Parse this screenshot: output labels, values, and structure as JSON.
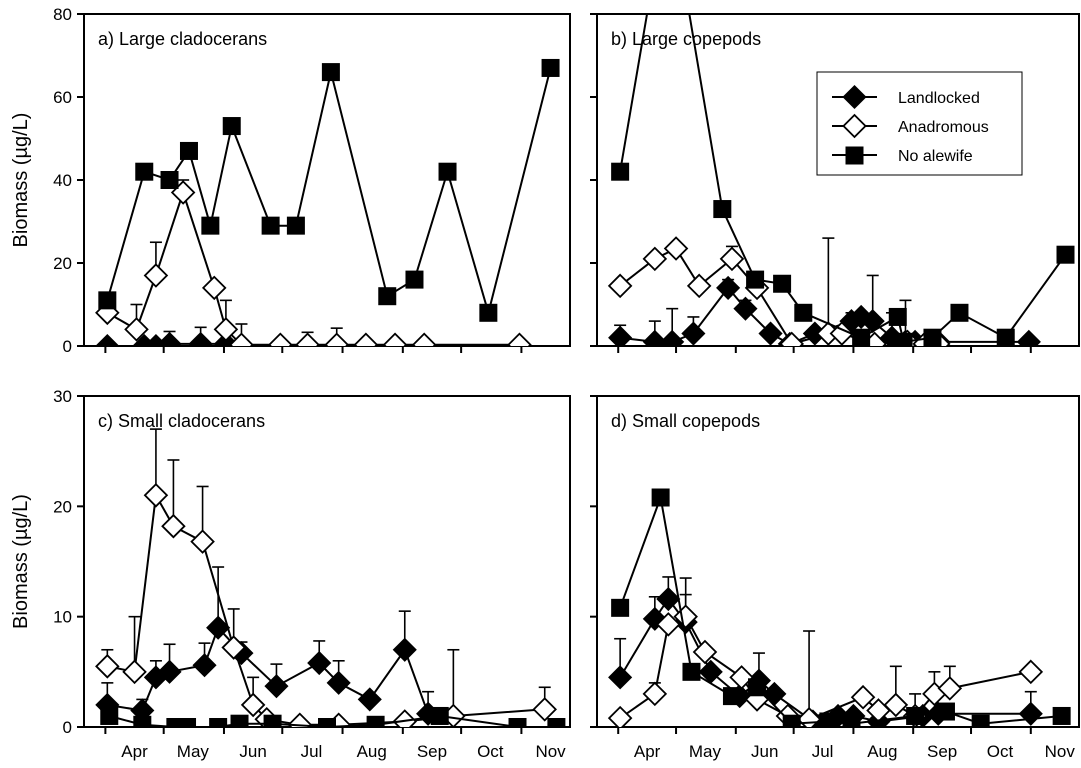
{
  "legend": {
    "placement": "top-right of panel b",
    "entries": [
      {
        "label": "Landlocked",
        "marker": "filled-diamond"
      },
      {
        "label": "Anadromous",
        "marker": "open-diamond"
      },
      {
        "label": "No alewife",
        "marker": "filled-square"
      }
    ]
  },
  "y_tick_labels_top": [
    "0",
    "20",
    "40",
    "60",
    "80"
  ],
  "y_tick_labels_bottom": [
    "0",
    "10",
    "20",
    "30"
  ],
  "months": [
    "Apr",
    "May",
    "Jun",
    "Jul",
    "Aug",
    "Sep",
    "Oct",
    "Nov"
  ],
  "chart_data": [
    {
      "type": "line",
      "title": "a) Large cladocerans",
      "xlabel": "",
      "ylabel": "Biomass (µg/L)",
      "ylim": [
        0,
        80
      ],
      "yticks": [
        0,
        20,
        40,
        60,
        80
      ],
      "x_unit": "day of year",
      "series": [
        {
          "name": "Landlocked",
          "x": [
            92,
            111,
            117,
            124,
            140,
            153
          ],
          "y": [
            0,
            0,
            0,
            0.5,
            0.5,
            0.5
          ],
          "err": [
            0,
            0,
            1,
            3,
            4,
            3
          ]
        },
        {
          "name": "Anadromous",
          "x": [
            92,
            107,
            117,
            131,
            147,
            153,
            161,
            181,
            195,
            210,
            225,
            240,
            255,
            304
          ],
          "y": [
            8,
            4,
            17,
            37,
            14,
            4,
            0.3,
            0.3,
            0.3,
            0.3,
            0.3,
            0.3,
            0.3,
            0.3
          ],
          "err": [
            0,
            6,
            8,
            3,
            0,
            7,
            5,
            0,
            3,
            4,
            0,
            0,
            0,
            0
          ]
        },
        {
          "name": "No alewife",
          "x": [
            92,
            111,
            124,
            134,
            145,
            156,
            176,
            189,
            207,
            236,
            250,
            267,
            288,
            320
          ],
          "y": [
            11,
            42,
            40,
            47,
            29,
            53,
            29,
            29,
            66,
            12,
            16,
            42,
            8,
            67
          ],
          "err": []
        }
      ]
    },
    {
      "type": "line",
      "title": "b) Large copepods",
      "xlabel": "",
      "ylabel": "",
      "ylim": [
        0,
        80
      ],
      "yticks": [
        0,
        20,
        40,
        60,
        80
      ],
      "x_unit": "day of year",
      "series": [
        {
          "name": "Landlocked",
          "x": [
            92,
            110,
            119,
            130,
            148,
            157,
            170,
            180,
            193,
            212,
            217,
            223,
            233,
            240,
            245,
            257,
            304
          ],
          "y": [
            2,
            1,
            1,
            3,
            14,
            9,
            3,
            0.5,
            3,
            6,
            7,
            6,
            2,
            1,
            1,
            1,
            1
          ],
          "err": [
            3,
            5,
            8,
            4,
            2,
            2,
            0,
            0,
            0,
            2,
            0,
            11,
            6,
            10,
            0,
            0,
            0
          ]
        },
        {
          "name": "Anadromous",
          "x": [
            92,
            110,
            121,
            133,
            150,
            163,
            181,
            200,
            207,
            224,
            241,
            250,
            257
          ],
          "y": [
            14.5,
            21,
            23.5,
            14.5,
            21,
            14,
            0.5,
            3,
            3,
            0.5,
            1,
            0.5,
            0.5
          ],
          "err": [
            0,
            0,
            0,
            0,
            3,
            0,
            0,
            23,
            0,
            0,
            0,
            0,
            0
          ]
        },
        {
          "name": "No alewife",
          "x": [
            92,
            117,
            145,
            162,
            176,
            187,
            217,
            236,
            239,
            254,
            268,
            292,
            323
          ],
          "y": [
            42,
            110,
            33,
            16,
            15,
            8,
            2,
            7,
            1,
            2,
            8,
            2,
            22
          ],
          "err": []
        }
      ]
    },
    {
      "type": "line",
      "title": "c) Small cladocerans",
      "xlabel": "",
      "ylabel": "Biomass (µg/L)",
      "ylim": [
        0,
        30
      ],
      "yticks": [
        0,
        10,
        20,
        30
      ],
      "x_unit": "day of year",
      "series": [
        {
          "name": "Landlocked",
          "x": [
            92,
            110,
            117,
            124,
            142,
            149,
            161,
            179,
            201,
            211,
            227,
            245,
            257
          ],
          "y": [
            2,
            1.5,
            4.5,
            5,
            5.6,
            9,
            6.7,
            3.7,
            5.8,
            4,
            2.5,
            7,
            1.2
          ],
          "err": [
            2,
            1,
            1.5,
            2.5,
            2,
            5.5,
            1,
            2,
            2,
            2,
            0,
            3.5,
            2
          ]
        },
        {
          "name": "Anadromous",
          "x": [
            92,
            106,
            117,
            126,
            141,
            157,
            167,
            174,
            191,
            211,
            245,
            270,
            317
          ],
          "y": [
            5.5,
            5,
            21,
            18.2,
            16.8,
            7.2,
            2,
            0.7,
            0.2,
            0.2,
            0.5,
            1,
            1.6
          ],
          "err": [
            1.5,
            5,
            6,
            6,
            5,
            3.5,
            2.5,
            0,
            0,
            0,
            0,
            6,
            2
          ]
        },
        {
          "name": "No alewife",
          "x": [
            93,
            110,
            127,
            133,
            149,
            160,
            177,
            205,
            230,
            263,
            303,
            323
          ],
          "y": [
            1,
            0.2,
            0,
            0,
            0,
            0.3,
            0.3,
            0,
            0.2,
            1,
            0,
            0
          ],
          "err": []
        }
      ]
    },
    {
      "type": "line",
      "title": "d) Small copepods",
      "xlabel": "",
      "ylabel": "",
      "ylim": [
        0,
        30
      ],
      "yticks": [
        0,
        10,
        20,
        30
      ],
      "x_unit": "day of year",
      "series": [
        {
          "name": "Landlocked",
          "x": [
            92,
            110,
            117,
            126,
            139,
            154,
            164,
            172,
            192,
            205,
            213,
            226,
            249,
            257,
            305
          ],
          "y": [
            4.5,
            9.8,
            11.6,
            9.5,
            5,
            2.8,
            4.2,
            3,
            0.5,
            1,
            1,
            0.5,
            1,
            1.2,
            1.2
          ],
          "err": [
            3.5,
            2,
            2,
            4,
            0,
            0,
            2.5,
            0,
            0,
            0,
            0,
            0,
            0,
            0,
            2
          ]
        },
        {
          "name": "Anadromous",
          "x": [
            92,
            110,
            117,
            126,
            136,
            155,
            163,
            179,
            190,
            218,
            226,
            235,
            245,
            255,
            263,
            305
          ],
          "y": [
            0.8,
            3,
            9.3,
            10,
            6.8,
            4.5,
            2.5,
            1,
            0.7,
            2.7,
            1.5,
            2,
            1,
            3,
            3.5,
            5
          ],
          "err": [
            0,
            1,
            0,
            2,
            0,
            0,
            0,
            0,
            8,
            0,
            0,
            3.5,
            2,
            2,
            2,
            0
          ]
        },
        {
          "name": "No alewife",
          "x": [
            92,
            113,
            129,
            150,
            163,
            181,
            200,
            212,
            245,
            261,
            279,
            321
          ],
          "y": [
            10.8,
            20.8,
            5,
            2.8,
            3.6,
            0.3,
            0.5,
            0.3,
            1,
            1.4,
            0.3,
            1
          ],
          "err": []
        }
      ]
    }
  ]
}
